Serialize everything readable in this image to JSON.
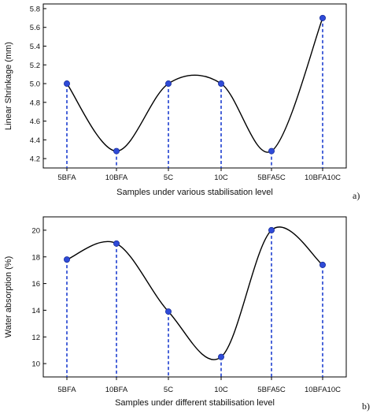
{
  "chart_data": [
    {
      "type": "line",
      "panel_label": "a)",
      "title": "",
      "xlabel": "Samples under various stabilisation level",
      "ylabel": "Linear Shrinkage (mm)",
      "categories": [
        "5BFA",
        "10BFA",
        "5C",
        "10C",
        "5BFA5C",
        "10BFA10C"
      ],
      "values": [
        5.0,
        4.28,
        5.0,
        5.0,
        4.28,
        5.7
      ],
      "ylim": [
        4.1,
        5.85
      ],
      "yticks": [
        "4.2",
        "4.4",
        "4.6",
        "4.8",
        "5.0",
        "5.2",
        "5.4",
        "5.6",
        "5.8"
      ],
      "grid": false,
      "legend": "none",
      "line_color": "#000000",
      "marker_color": "#2f4bd8",
      "dropline_color": "#1e3fd0"
    },
    {
      "type": "line",
      "panel_label": "b)",
      "title": "",
      "xlabel": "Samples under different stabilisation level",
      "ylabel": "Water absorption (%)",
      "categories": [
        "5BFA",
        "10BFA",
        "5C",
        "10C",
        "5BFA5C",
        "10BFA10C"
      ],
      "values": [
        17.8,
        19.0,
        13.9,
        10.5,
        20.0,
        17.4
      ],
      "ylim": [
        9,
        21
      ],
      "yticks": [
        "10",
        "12",
        "14",
        "16",
        "18",
        "20"
      ],
      "grid": false,
      "legend": "none",
      "line_color": "#000000",
      "marker_color": "#2f4bd8",
      "dropline_color": "#1e3fd0"
    }
  ]
}
